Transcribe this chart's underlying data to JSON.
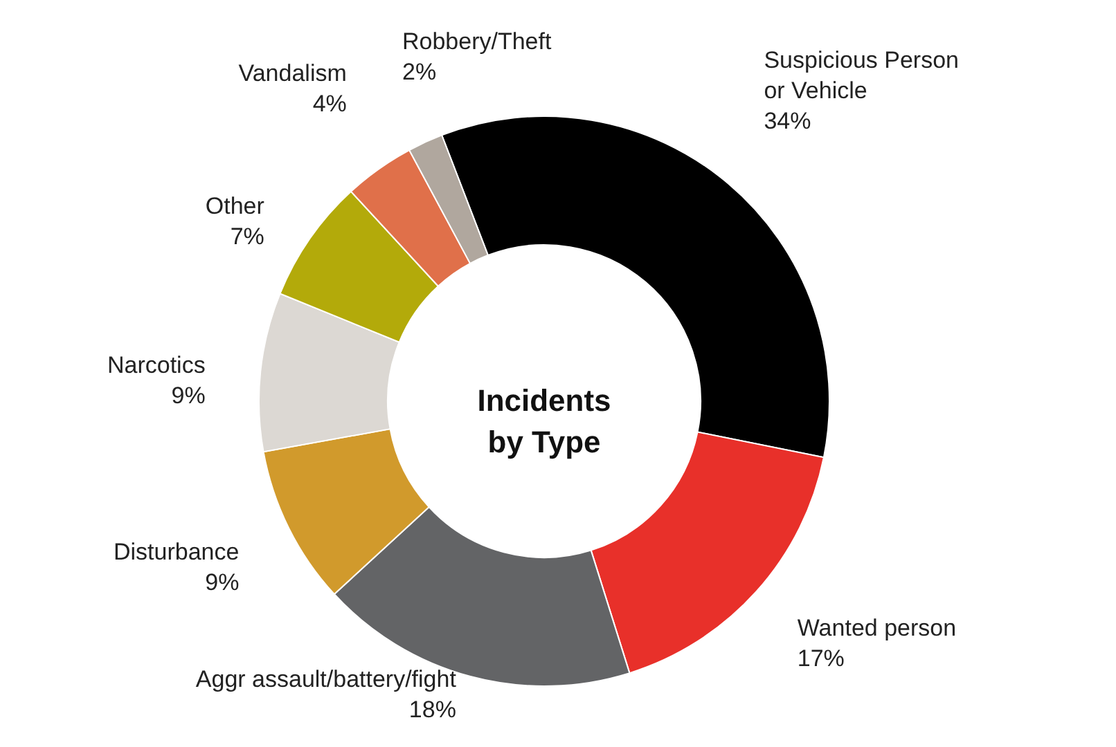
{
  "chart_data": {
    "type": "donut",
    "title": "Incidents by Type",
    "categories": [
      "Suspicious Person or Vehicle",
      "Wanted person",
      "Aggr assault/battery/fight",
      "Disturbance",
      "Narcotics",
      "Other",
      "Vandalism",
      "Robbery/Theft"
    ],
    "values": [
      34,
      17,
      18,
      9,
      9,
      7,
      4,
      2
    ],
    "colors": [
      "#000000",
      "#e8302a",
      "#636466",
      "#d19a2c",
      "#dcd8d3",
      "#b3aa0a",
      "#e0704a",
      "#b0a79e"
    ],
    "value_labels": [
      "34%",
      "17%",
      "18%",
      "9%",
      "9%",
      "7%",
      "4%",
      "2%"
    ]
  }
}
